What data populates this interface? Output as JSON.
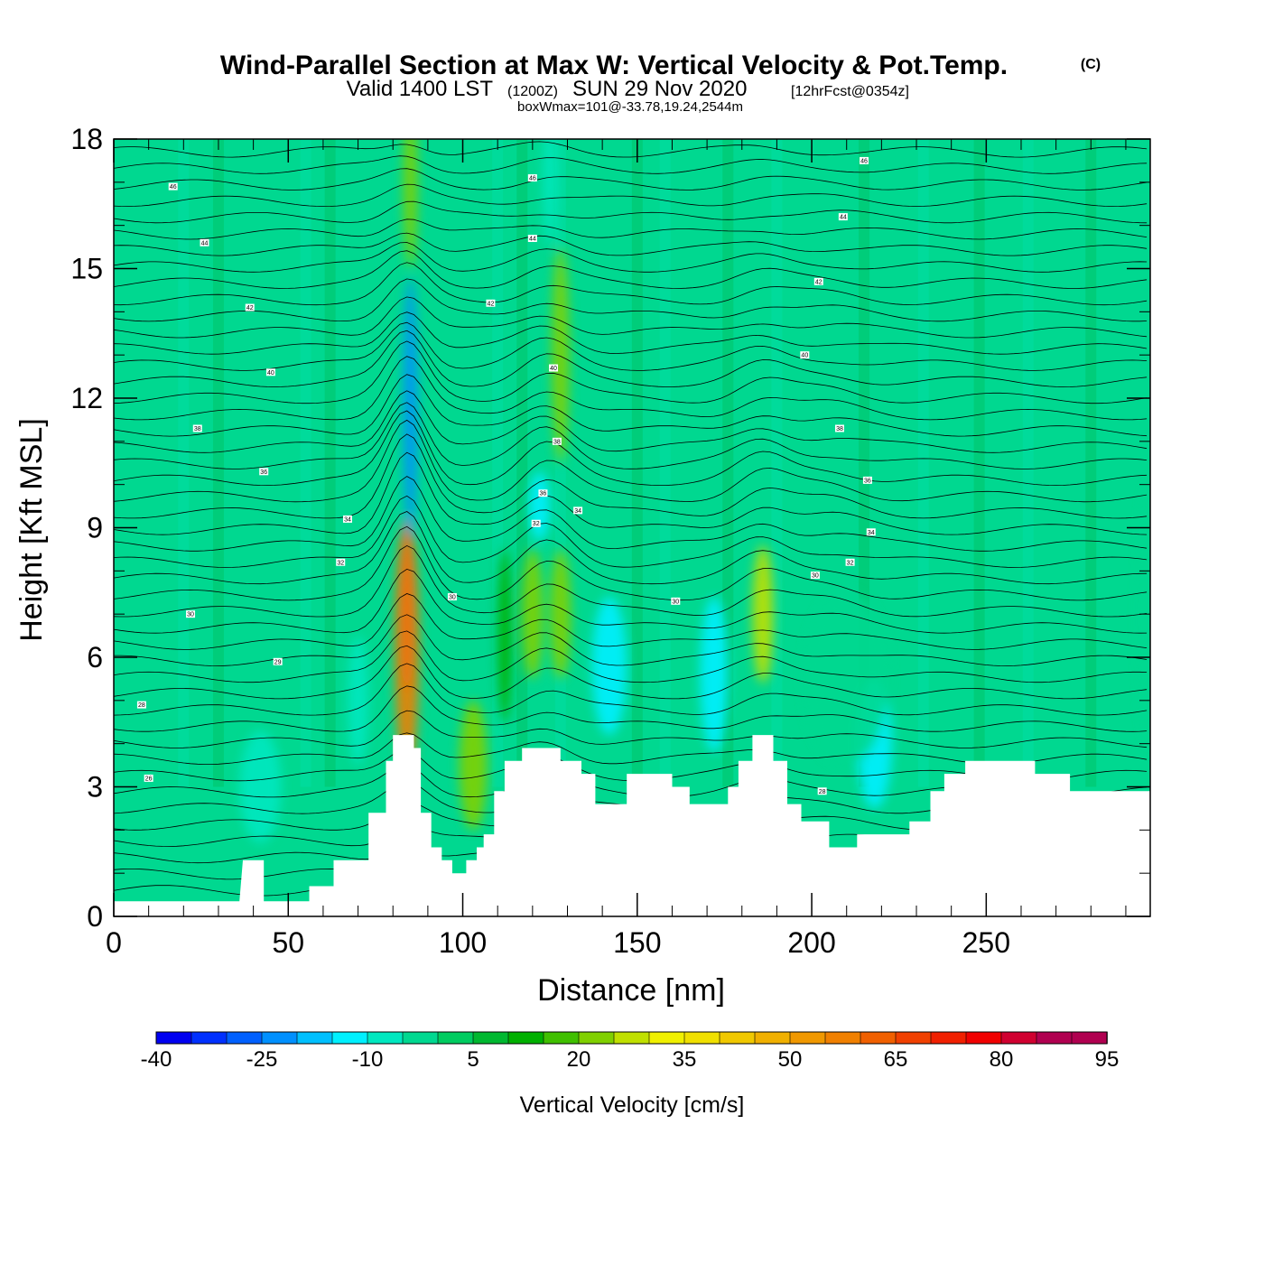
{
  "title": {
    "main": "Wind-Parallel Section at Max W: Vertical Velocity & Pot.Temp.",
    "copyright": "(C)",
    "valid_prefix": "Valid 1400 LST",
    "valid_utc": "(1200Z)",
    "valid_date": "SUN 29 Nov 2020",
    "forecast": "[12hrFcst@0354z]",
    "box_wmax": "boxWmax=101@-33.78,19.24,2544m"
  },
  "chart_data": {
    "type": "heatmap",
    "xlabel": "Distance [nm]",
    "ylabel": "Height [Kft MSL]",
    "xlim": [
      0,
      297
    ],
    "ylim": [
      0,
      18
    ],
    "x_ticks": [
      0,
      50,
      100,
      150,
      200,
      250
    ],
    "y_ticks": [
      0,
      3,
      6,
      9,
      12,
      15,
      18
    ],
    "terrain_kft": [
      [
        0,
        0.35
      ],
      [
        36,
        0.35
      ],
      [
        37,
        1.3
      ],
      [
        43,
        1.3
      ],
      [
        43,
        0.35
      ],
      [
        56,
        0.35
      ],
      [
        56,
        0.7
      ],
      [
        63,
        0.7
      ],
      [
        63,
        1.3
      ],
      [
        73,
        1.3
      ],
      [
        73,
        2.4
      ],
      [
        78,
        2.4
      ],
      [
        78,
        3.6
      ],
      [
        80,
        3.6
      ],
      [
        80,
        4.2
      ],
      [
        86,
        4.2
      ],
      [
        86,
        3.9
      ],
      [
        88,
        3.9
      ],
      [
        88,
        2.4
      ],
      [
        91,
        2.4
      ],
      [
        91,
        1.6
      ],
      [
        94,
        1.6
      ],
      [
        94,
        1.3
      ],
      [
        97,
        1.3
      ],
      [
        97,
        1.0
      ],
      [
        101,
        1.0
      ],
      [
        101,
        1.3
      ],
      [
        104,
        1.3
      ],
      [
        104,
        1.6
      ],
      [
        106,
        1.6
      ],
      [
        106,
        1.9
      ],
      [
        109,
        1.9
      ],
      [
        109,
        2.9
      ],
      [
        112,
        2.9
      ],
      [
        112,
        3.6
      ],
      [
        117,
        3.6
      ],
      [
        117,
        3.9
      ],
      [
        128,
        3.9
      ],
      [
        128,
        3.6
      ],
      [
        134,
        3.6
      ],
      [
        134,
        3.3
      ],
      [
        138,
        3.3
      ],
      [
        138,
        2.6
      ],
      [
        147,
        2.6
      ],
      [
        147,
        3.3
      ],
      [
        160,
        3.3
      ],
      [
        160,
        3.0
      ],
      [
        165,
        3.0
      ],
      [
        165,
        2.6
      ],
      [
        176,
        2.6
      ],
      [
        176,
        3.0
      ],
      [
        179,
        3.0
      ],
      [
        179,
        3.6
      ],
      [
        183,
        3.6
      ],
      [
        183,
        4.2
      ],
      [
        189,
        4.2
      ],
      [
        189,
        3.6
      ],
      [
        193,
        3.6
      ],
      [
        193,
        2.6
      ],
      [
        197,
        2.6
      ],
      [
        197,
        2.2
      ],
      [
        205,
        2.2
      ],
      [
        205,
        1.6
      ],
      [
        213,
        1.6
      ],
      [
        213,
        1.9
      ],
      [
        228,
        1.9
      ],
      [
        228,
        2.2
      ],
      [
        234,
        2.2
      ],
      [
        234,
        2.9
      ],
      [
        238,
        2.9
      ],
      [
        238,
        3.3
      ],
      [
        244,
        3.3
      ],
      [
        244,
        3.6
      ],
      [
        264,
        3.6
      ],
      [
        264,
        3.3
      ],
      [
        274,
        3.3
      ],
      [
        274,
        2.9
      ],
      [
        297,
        2.9
      ]
    ],
    "w_blobs_cm_s": [
      {
        "x": 84,
        "y": 7.2,
        "rx": 2.5,
        "ry": 2.0,
        "w": 90
      },
      {
        "x": 84,
        "y": 6.2,
        "rx": 3.5,
        "ry": 3.0,
        "w": 60
      },
      {
        "x": 85,
        "y": 17.0,
        "rx": 2.0,
        "ry": 2.0,
        "w": 20
      },
      {
        "x": 85,
        "y": 11.8,
        "rx": 2.0,
        "ry": 3.0,
        "w": -25
      },
      {
        "x": 125,
        "y": 17.0,
        "rx": 2.0,
        "ry": 1.5,
        "w": -10
      },
      {
        "x": 128,
        "y": 13.0,
        "rx": 2.5,
        "ry": 2.5,
        "w": 20
      },
      {
        "x": 122,
        "y": 9.5,
        "rx": 3.0,
        "ry": 0.8,
        "w": -15
      },
      {
        "x": 142,
        "y": 5.8,
        "rx": 5.0,
        "ry": 1.6,
        "w": -15
      },
      {
        "x": 172,
        "y": 5.6,
        "rx": 4.0,
        "ry": 1.8,
        "w": -15
      },
      {
        "x": 186,
        "y": 7.0,
        "rx": 3.0,
        "ry": 1.6,
        "w": 30
      },
      {
        "x": 120,
        "y": 7.0,
        "rx": 3.0,
        "ry": 1.5,
        "w": 20
      },
      {
        "x": 128,
        "y": 7.0,
        "rx": 3.0,
        "ry": 1.5,
        "w": 20
      },
      {
        "x": 218,
        "y": 4.0,
        "rx": 5.0,
        "ry": 1.5,
        "w": -15
      },
      {
        "x": 42,
        "y": 3.0,
        "rx": 6.0,
        "ry": 1.3,
        "w": -10
      },
      {
        "x": 70,
        "y": 5.0,
        "rx": 3.0,
        "ry": 1.5,
        "w": -10
      },
      {
        "x": 103,
        "y": 3.5,
        "rx": 4.0,
        "ry": 1.5,
        "w": 20
      },
      {
        "x": 112,
        "y": 6.5,
        "rx": 2.0,
        "ry": 2.0,
        "w": 10
      },
      {
        "x": 210,
        "y": 5.5,
        "rx": 12.0,
        "ry": 2.0,
        "w": -5
      },
      {
        "x": 297,
        "y": 7.0,
        "rx": 3.0,
        "ry": 3.0,
        "w": -5
      }
    ],
    "theta_levels": [
      {
        "label": "26",
        "y0": 2.6,
        "label_x": 10,
        "label_y": 3.2
      },
      {
        "label": "28",
        "y0": 5.0,
        "label_x": 8,
        "label_y": 4.9
      },
      {
        "label": "29",
        "y0": 5.9,
        "label_x": 47,
        "label_y": 5.9
      },
      {
        "label": "30",
        "y0": 7.0,
        "label_x": 22,
        "label_y": 7.0
      },
      {
        "label": "32",
        "y0": 8.3,
        "label_x": 65,
        "label_y": 8.2
      },
      {
        "label": "34",
        "y0": 9.2,
        "label_x": 67,
        "label_y": 9.2
      },
      {
        "label": "36",
        "y0": 10.3,
        "label_x": 43,
        "label_y": 10.3
      },
      {
        "label": "38",
        "y0": 11.3,
        "label_x": 24,
        "label_y": 11.3
      },
      {
        "label": "40",
        "y0": 12.6,
        "label_x": 45,
        "label_y": 12.6
      },
      {
        "label": "42",
        "y0": 14.1,
        "label_x": 39,
        "label_y": 14.1
      },
      {
        "label": "44",
        "y0": 15.6,
        "label_x": 26,
        "label_y": 15.6
      },
      {
        "label": "46",
        "y0": 16.9,
        "label_x": 17,
        "label_y": 16.9
      }
    ],
    "theta_labels_extra": [
      {
        "label": "30",
        "x": 97,
        "y": 7.4
      },
      {
        "label": "32",
        "x": 121,
        "y": 9.1
      },
      {
        "label": "34",
        "x": 133,
        "y": 9.4
      },
      {
        "label": "36",
        "x": 123,
        "y": 9.8
      },
      {
        "label": "38",
        "x": 127,
        "y": 11.0
      },
      {
        "label": "40",
        "x": 126,
        "y": 12.7
      },
      {
        "label": "42",
        "x": 108,
        "y": 14.2
      },
      {
        "label": "44",
        "x": 120,
        "y": 15.7
      },
      {
        "label": "46",
        "x": 120,
        "y": 17.1
      },
      {
        "label": "30",
        "x": 201,
        "y": 7.9
      },
      {
        "label": "32",
        "x": 211,
        "y": 8.2
      },
      {
        "label": "34",
        "x": 217,
        "y": 8.9
      },
      {
        "label": "36",
        "x": 216,
        "y": 10.1
      },
      {
        "label": "38",
        "x": 208,
        "y": 11.3
      },
      {
        "label": "40",
        "x": 198,
        "y": 13.0
      },
      {
        "label": "42",
        "x": 202,
        "y": 14.7
      },
      {
        "label": "44",
        "x": 209,
        "y": 16.2
      },
      {
        "label": "46",
        "x": 215,
        "y": 17.5
      },
      {
        "label": "30",
        "x": 161,
        "y": 7.3
      },
      {
        "label": "28",
        "x": 203,
        "y": 2.9
      }
    ],
    "colorbar": {
      "label": "Vertical Velocity [cm/s]",
      "levels": [
        -40,
        95
      ],
      "tick_labels": [
        "-40",
        "-25",
        "-10",
        "5",
        "20",
        "35",
        "50",
        "65",
        "80",
        "95"
      ],
      "colors": [
        "#0000f0",
        "#0030ff",
        "#0060ff",
        "#0090ff",
        "#00c0ff",
        "#00f0ff",
        "#00e8c0",
        "#00d890",
        "#00cc60",
        "#00b830",
        "#00b000",
        "#40c000",
        "#80d000",
        "#c0e000",
        "#f0f000",
        "#f0e000",
        "#f0c800",
        "#f0b000",
        "#f09800",
        "#f08000",
        "#f06000",
        "#f04000",
        "#f02000",
        "#f00000",
        "#d00030",
        "#b00050",
        "#b00050"
      ]
    }
  }
}
